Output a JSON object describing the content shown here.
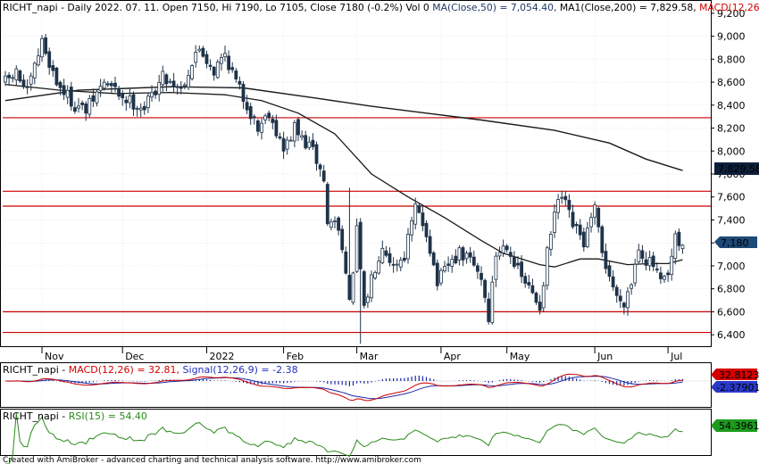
{
  "colors": {
    "background": "#ffffff",
    "grid": "#d8d8d8",
    "candle_up": "#ffffff",
    "candle_down": "#1f3349",
    "candle_outline": "#1f3349",
    "ma50": "#1a1a1a",
    "ma200": "#1a1a1a",
    "support_lines": "#cc0000",
    "macd_line": "#cc0000",
    "signal_line": "#1c2aa6",
    "histogram": "#1c2aa6",
    "rsi_line": "#2a8a1a",
    "badge_dark": "#0d1f3a",
    "badge_navy": "#1d4a78",
    "badge_red": "#d40000",
    "badge_blue": "#2b39c9",
    "badge_green": "#1e9a1e",
    "macd_text_red": "#d40000",
    "signal_text_blue": "#2030c0",
    "ma_text_navy": "#1d3a64"
  },
  "header": {
    "prefix": "RICHT_napi - Daily 2022. 07. 11. Open 7150, Hi 7190, Lo 7105, Close 7180 (-0.2%) Vol 0 ",
    "ma50_text": "MA(Close,50) = 7,054.40, ",
    "ma200_text": "MA1(Close,200) = 7,829.58, ",
    "macd_text": "MACD(12,26"
  },
  "macd_header": {
    "prefix": "RICHT_napi - ",
    "macd_text": "MACD(12,26) = 32.81, ",
    "signal_text": "Signal(12,26,9) = -2.38"
  },
  "rsi_header": {
    "prefix": "RICHT_napi - ",
    "rsi_text": "RSI(15) = 54.40"
  },
  "footer": "Created with AmiBroker - advanced charting and technical analysis software. http://www.amibroker.com",
  "badges": {
    "ma200": "7,829.58",
    "close": "7,180",
    "macd": "32.8123",
    "signal": "-2.37901",
    "rsi": "54.3961"
  },
  "chart_data": {
    "type": "candlestick",
    "symbol": "RICHT_napi",
    "period": "Daily",
    "last_bar": {
      "date": "2022. 07. 11.",
      "open": 7150,
      "high": 7190,
      "low": 7105,
      "close": 7180,
      "change_pct": -0.2,
      "volume": 0
    },
    "ylim": [
      6300,
      9300
    ],
    "y_ticks": [
      6400,
      6600,
      6800,
      7000,
      7200,
      7400,
      7600,
      7800,
      8000,
      8200,
      8400,
      8600,
      8800,
      9000,
      9200
    ],
    "x_ticks": [
      {
        "label": "Nov",
        "bar": 10
      },
      {
        "label": "Dec",
        "bar": 32
      },
      {
        "label": "2022",
        "bar": 55
      },
      {
        "label": "Feb",
        "bar": 76
      },
      {
        "label": "Mar",
        "bar": 96
      },
      {
        "label": "Apr",
        "bar": 119
      },
      {
        "label": "May",
        "bar": 137
      },
      {
        "label": "Jun",
        "bar": 161
      },
      {
        "label": "Jul",
        "bar": 181
      }
    ],
    "horizontal_lines": [
      8290,
      7650,
      7520,
      6600,
      6420
    ],
    "ma50_value": 7054.4,
    "ma200_value": 7829.58,
    "ma50": [
      [
        0,
        8580
      ],
      [
        15,
        8530
      ],
      [
        30,
        8500
      ],
      [
        45,
        8510
      ],
      [
        60,
        8490
      ],
      [
        70,
        8440
      ],
      [
        80,
        8330
      ],
      [
        90,
        8150
      ],
      [
        100,
        7800
      ],
      [
        110,
        7600
      ],
      [
        120,
        7420
      ],
      [
        130,
        7220
      ],
      [
        136,
        7110
      ],
      [
        140,
        7070
      ],
      [
        146,
        7010
      ],
      [
        150,
        6990
      ],
      [
        157,
        7060
      ],
      [
        162,
        7060
      ],
      [
        170,
        7010
      ],
      [
        176,
        7020
      ],
      [
        181,
        7020
      ],
      [
        185,
        7054
      ]
    ],
    "ma200": [
      [
        0,
        8440
      ],
      [
        20,
        8530
      ],
      [
        45,
        8560
      ],
      [
        65,
        8550
      ],
      [
        85,
        8460
      ],
      [
        100,
        8390
      ],
      [
        115,
        8330
      ],
      [
        130,
        8270
      ],
      [
        150,
        8180
      ],
      [
        165,
        8070
      ],
      [
        175,
        7930
      ],
      [
        185,
        7830
      ]
    ],
    "anchors": [
      [
        0,
        8600
      ],
      [
        3,
        8680
      ],
      [
        6,
        8500
      ],
      [
        10,
        8950
      ],
      [
        14,
        8600
      ],
      [
        19,
        8400
      ],
      [
        22,
        8350
      ],
      [
        27,
        8600
      ],
      [
        33,
        8450
      ],
      [
        38,
        8380
      ],
      [
        43,
        8650
      ],
      [
        48,
        8550
      ],
      [
        53,
        8900
      ],
      [
        57,
        8700
      ],
      [
        60,
        8850
      ],
      [
        63,
        8600
      ],
      [
        66,
        8400
      ],
      [
        69,
        8200
      ],
      [
        72,
        8350
      ],
      [
        76,
        8000
      ],
      [
        79,
        8200
      ],
      [
        81,
        8100
      ],
      [
        84,
        8000
      ],
      [
        87,
        7750
      ],
      [
        88,
        7350
      ],
      [
        90,
        7400
      ],
      [
        92,
        7200
      ],
      [
        94,
        6650
      ],
      [
        96,
        7300
      ],
      [
        98,
        6600
      ],
      [
        100,
        6900
      ],
      [
        103,
        7200
      ],
      [
        106,
        7000
      ],
      [
        109,
        7100
      ],
      [
        112,
        7500
      ],
      [
        115,
        7300
      ],
      [
        118,
        6850
      ],
      [
        121,
        7000
      ],
      [
        124,
        7100
      ],
      [
        127,
        7050
      ],
      [
        130,
        6900
      ],
      [
        132,
        6550
      ],
      [
        134,
        7100
      ],
      [
        137,
        7200
      ],
      [
        140,
        6950
      ],
      [
        144,
        6750
      ],
      [
        146,
        6650
      ],
      [
        148,
        7100
      ],
      [
        150,
        7450
      ],
      [
        152,
        7600
      ],
      [
        155,
        7350
      ],
      [
        158,
        7200
      ],
      [
        161,
        7480
      ],
      [
        163,
        7100
      ],
      [
        165,
        6920
      ],
      [
        167,
        6720
      ],
      [
        169,
        6700
      ],
      [
        171,
        6860
      ],
      [
        173,
        7180
      ],
      [
        175,
        7050
      ],
      [
        177,
        7000
      ],
      [
        179,
        6840
      ],
      [
        181,
        6900
      ],
      [
        183,
        7220
      ],
      [
        185,
        7150
      ]
    ],
    "indicators": {
      "macd": {
        "value": 32.81,
        "signal_value": -2.38,
        "params": "12,26,9"
      },
      "rsi": {
        "value": 54.4,
        "period": 15
      }
    }
  }
}
